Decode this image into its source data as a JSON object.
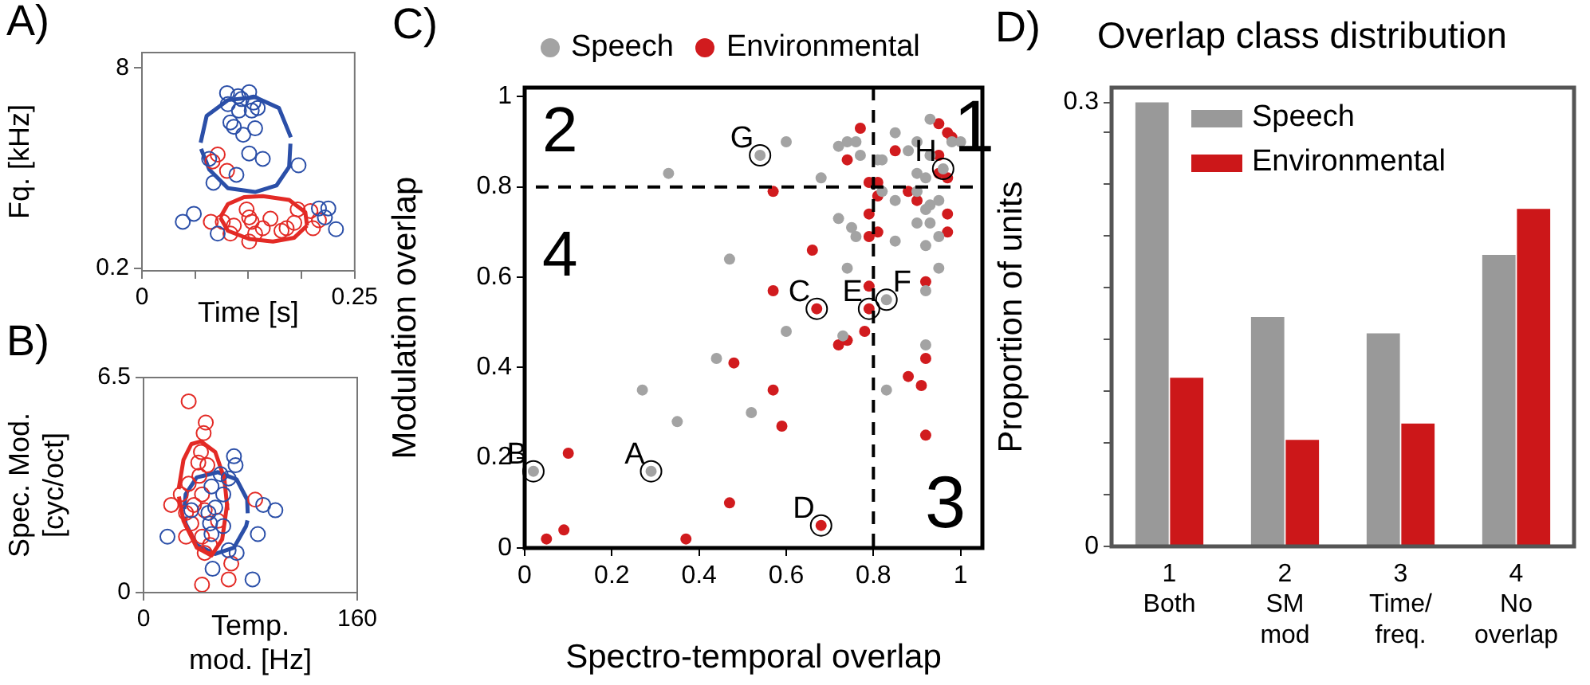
{
  "chart_data": [
    {
      "type": "scatter",
      "annotations": [
        "A)"
      ],
      "xlabel": "Time [s]",
      "ylabel": "Fq. [kHz]",
      "xlim": [
        0,
        0.25
      ],
      "ylim": [
        0.1,
        8.6
      ],
      "xticks": [
        0,
        {
          "value": 0.0625,
          "label": null
        },
        {
          "value": 0.125,
          "label": null
        },
        {
          "value": 0.1875,
          "label": null
        },
        0.25
      ],
      "yticks": [
        0.2,
        8
      ],
      "marker": "circle",
      "series": [
        {
          "color": "#2b4fa8",
          "x": [
            0.1,
            0.113,
            0.126,
            0.117,
            0.131,
            0.136,
            0.101,
            0.114,
            0.129,
            0.104,
            0.108,
            0.133,
            0.119,
            0.126,
            0.142,
            0.184,
            0.079,
            0.084,
            0.111,
            0.048,
            0.061,
            0.089,
            0.208,
            0.219,
            0.215,
            0.228
          ],
          "values": [
            7.02,
            6.9,
            7.06,
            6.79,
            6.65,
            6.44,
            6.59,
            6.34,
            6.34,
            5.88,
            5.71,
            5.65,
            5.4,
            4.67,
            4.46,
            4.21,
            4.46,
            3.53,
            3.84,
            2.01,
            2.32,
            1.55,
            2.53,
            2.53,
            2.18,
            1.72
          ]
        },
        {
          "color": "#e32a25",
          "x": [
            0.089,
            0.083,
            0.1,
            0.081,
            0.095,
            0.104,
            0.126,
            0.129,
            0.133,
            0.126,
            0.142,
            0.151,
            0.17,
            0.179,
            0.183,
            0.198,
            0.201,
            0.208,
            0.164,
            0.108,
            0.123
          ],
          "values": [
            4.63,
            4.36,
            3.99,
            2.01,
            2.01,
            1.55,
            2.18,
            2.01,
            1.55,
            1.24,
            1.76,
            2.13,
            1.76,
            1.97,
            2.49,
            2.43,
            1.76,
            2.07,
            1.66,
            1.86,
            2.49
          ]
        },
        {
          "type": "line",
          "marker": "none",
          "color": "#2b4fa8",
          "x": [
            0.069,
            0.076,
            0.101,
            0.133,
            0.161,
            0.175
          ],
          "values": [
            5.09,
            6.13,
            6.75,
            6.86,
            6.44,
            5.3
          ]
        },
        {
          "type": "line",
          "marker": "none",
          "color": "#2b4fa8",
          "x": [
            0.0695,
            0.079,
            0.101,
            0.133,
            0.158,
            0.173,
            0.1745
          ],
          "values": [
            4.85,
            4.05,
            3.32,
            3.17,
            3.42,
            4.15,
            5.05
          ]
        },
        {
          "type": "line",
          "marker": "none",
          "color": "#e32a25",
          "x": [
            0.092,
            0.101,
            0.12,
            0.142,
            0.173,
            0.192,
            0.194
          ],
          "values": [
            2.18,
            2.7,
            2.97,
            3.01,
            2.86,
            2.38,
            1.86
          ]
        },
        {
          "type": "line",
          "marker": "none",
          "color": "#e32a25",
          "x": [
            0.092,
            0.101,
            0.126,
            0.154,
            0.179,
            0.194
          ],
          "values": [
            2.18,
            1.66,
            1.34,
            1.24,
            1.39,
            1.86
          ]
        }
      ]
    },
    {
      "type": "scatter",
      "annotations": [
        "B)"
      ],
      "xlabel": "Temp.\nmod. [Hz]",
      "ylabel": "Spec. Mod.\n[cyc/oct]",
      "xlim": [
        0,
        160
      ],
      "ylim": [
        0,
        6.5
      ],
      "xticks": [
        0,
        160
      ],
      "yticks": [
        0,
        6.5
      ],
      "marker": "circle",
      "series": [
        {
          "color": "#2b4fa8",
          "x": [
            67.7,
            68.9,
            57.7,
            63.7,
            50.9,
            59.7,
            53.7,
            48.6,
            49.8,
            50.9,
            59.7,
            63.7,
            51.7,
            69.7,
            81.6,
            89.6,
            98.7,
            85.6,
            17.9,
            35.8
          ],
          "values": [
            4.12,
            3.85,
            3.58,
            3.45,
            3.21,
            2.97,
            2.57,
            2.41,
            2.09,
            1.77,
            2.01,
            1.28,
            0.72,
            1.2,
            0.4,
            2.65,
            2.49,
            1.77,
            1.69,
            2.49
          ]
        },
        {
          "color": "#e32a25",
          "x": [
            33.8,
            46.6,
            45.0,
            43.0,
            41.0,
            47.8,
            41.8,
            33.8,
            27.9,
            20.7,
            43.8,
            37.8,
            31.8,
            45.8,
            35.8,
            31.8,
            43.8,
            49.8,
            45.8,
            65.7,
            63.7,
            43.8,
            83.6,
            55.7
          ],
          "values": [
            5.78,
            5.14,
            4.82,
            4.25,
            3.93,
            3.85,
            3.53,
            3.29,
            2.97,
            2.65,
            2.97,
            2.65,
            2.41,
            2.49,
            2.09,
            1.69,
            1.69,
            1.44,
            1.2,
            0.88,
            0.4,
            0.24,
            2.81,
            2.17
          ]
        },
        {
          "type": "line",
          "marker": "none",
          "color": "#e32a25",
          "x": [
            26.3,
            29.9,
            35.8,
            43.0,
            53.7,
            60.5,
            62.9
          ],
          "values": [
            3.13,
            4.01,
            4.49,
            4.57,
            4.25,
            3.45,
            2.49
          ]
        },
        {
          "type": "line",
          "marker": "none",
          "color": "#e32a25",
          "x": [
            26.5,
            29.9,
            39.8,
            50.9,
            58.9,
            62.7
          ],
          "values": [
            2.9,
            2.17,
            1.36,
            1.12,
            1.61,
            2.7
          ]
        },
        {
          "type": "line",
          "marker": "none",
          "color": "#2b4fa8",
          "x": [
            30.5,
            31.5,
            39.8,
            55.7,
            69.7,
            77.6,
            78.0
          ],
          "values": [
            2.53,
            2.97,
            3.48,
            3.64,
            3.42,
            2.81,
            2.4
          ]
        },
        {
          "type": "line",
          "marker": "none",
          "color": "#2b4fa8",
          "x": [
            30.8,
            31.5,
            39.8,
            53.7,
            67.7,
            76.8,
            77.8
          ],
          "values": [
            2.3,
            2.09,
            1.44,
            1.17,
            1.36,
            2.01,
            2.18
          ]
        }
      ]
    },
    {
      "type": "scatter",
      "xlabel": "Spectro-temporal overlap",
      "ylabel": "Modulation overlap",
      "xlim": [
        0,
        1.05
      ],
      "ylim": [
        0,
        1.02
      ],
      "xticks": [
        0,
        0.2,
        0.4,
        0.6,
        0.8,
        1
      ],
      "yticks": [
        0,
        0.2,
        0.4,
        0.6,
        0.8,
        1
      ],
      "marker": "circle",
      "legend": "top",
      "annotations": [
        "C)",
        {
          "text": "A",
          "x": 0.29,
          "y": 0.17
        },
        {
          "text": "B",
          "x": 0.02,
          "y": 0.17
        },
        {
          "text": "C",
          "x": 0.67,
          "y": 0.53
        },
        {
          "text": "D",
          "x": 0.68,
          "y": 0.05
        },
        {
          "text": "E",
          "x": 0.79,
          "y": 0.53
        },
        {
          "text": "F",
          "x": 0.83,
          "y": 0.55
        },
        {
          "text": "G",
          "x": 0.54,
          "y": 0.87
        },
        {
          "text": "H",
          "x": 0.96,
          "y": 0.84
        },
        "1",
        "2",
        "3",
        "4"
      ],
      "ref_lines": [
        {
          "axis": "x",
          "value": 0.8,
          "color": "#000000",
          "line_style": "dashed"
        },
        {
          "axis": "y",
          "value": 0.8,
          "color": "#000000",
          "line_style": "dashed"
        }
      ],
      "series": [
        {
          "name": "Speech",
          "color": "#a3a3a3",
          "x": [
            0.33,
            0.6,
            0.54,
            0.68,
            0.72,
            0.74,
            0.76,
            0.77,
            0.81,
            0.82,
            0.85,
            0.88,
            0.9,
            0.93,
            0.93,
            0.98,
            1.0,
            0.96,
            0.9,
            0.92,
            0.82,
            0.85,
            0.9,
            0.93,
            0.95,
            0.92,
            0.9,
            0.93,
            0.72,
            0.75,
            0.76,
            0.85,
            0.92,
            0.95,
            0.95,
            0.47,
            0.74,
            0.92,
            0.83,
            0.6,
            0.73,
            0.92,
            0.44,
            0.27,
            0.35,
            0.52,
            0.83,
            0.02,
            0.29
          ],
          "values": [
            0.83,
            0.9,
            0.87,
            0.82,
            0.89,
            0.9,
            0.9,
            0.87,
            0.86,
            0.86,
            0.92,
            0.88,
            0.9,
            0.95,
            0.87,
            0.9,
            0.9,
            0.84,
            0.83,
            0.82,
            0.79,
            0.77,
            0.79,
            0.76,
            0.77,
            0.75,
            0.72,
            0.72,
            0.73,
            0.71,
            0.69,
            0.68,
            0.67,
            0.62,
            0.69,
            0.64,
            0.62,
            0.57,
            0.55,
            0.48,
            0.47,
            0.45,
            0.42,
            0.35,
            0.28,
            0.3,
            0.35,
            0.17,
            0.17
          ]
        },
        {
          "name": "Environmental",
          "color": "#d11b1e",
          "x": [
            0.77,
            0.74,
            0.85,
            0.95,
            0.97,
            0.98,
            0.95,
            0.95,
            0.97,
            0.57,
            0.79,
            0.81,
            0.81,
            0.88,
            0.9,
            0.79,
            0.81,
            0.79,
            0.97,
            0.97,
            0.66,
            0.57,
            0.79,
            0.67,
            0.79,
            0.92,
            0.78,
            0.74,
            0.72,
            0.48,
            0.57,
            0.59,
            0.88,
            0.92,
            0.91,
            0.92,
            0.1,
            0.47,
            0.09,
            0.05,
            0.37,
            0.68
          ],
          "values": [
            0.93,
            0.86,
            0.88,
            0.94,
            0.92,
            0.91,
            0.87,
            0.83,
            0.82,
            0.79,
            0.81,
            0.81,
            0.78,
            0.79,
            0.77,
            0.74,
            0.7,
            0.69,
            0.74,
            0.7,
            0.66,
            0.57,
            0.58,
            0.53,
            0.53,
            0.59,
            0.48,
            0.46,
            0.45,
            0.41,
            0.35,
            0.27,
            0.38,
            0.42,
            0.36,
            0.25,
            0.21,
            0.1,
            0.04,
            0.02,
            0.02,
            0.05
          ]
        }
      ]
    },
    {
      "type": "bar",
      "title": "Overlap class distribution",
      "annotations": [
        "D)"
      ],
      "ylabel": "Proportion of units",
      "categories": [
        "1\nBoth",
        "2\nSM\nmod",
        "3\nTime/\nfreq.",
        "4\nNo\noverlap"
      ],
      "ylim": [
        0,
        0.31
      ],
      "yticks": [
        0,
        {
          "value": 0.035,
          "label": null
        },
        {
          "value": 0.07,
          "label": null
        },
        {
          "value": 0.105,
          "label": null
        },
        {
          "value": 0.14,
          "label": null
        },
        {
          "value": 0.175,
          "label": null
        },
        {
          "value": 0.21,
          "label": null
        },
        {
          "value": 0.245,
          "label": null
        },
        {
          "value": 0.28,
          "label": null
        },
        0.3
      ],
      "legend": "top left",
      "series": [
        {
          "name": "Speech",
          "color": "#999999",
          "values": [
            0.3,
            0.155,
            0.144,
            0.197
          ]
        },
        {
          "name": "Environmental",
          "color": "#cc1719",
          "values": [
            0.114,
            0.072,
            0.083,
            0.228
          ]
        }
      ]
    }
  ]
}
